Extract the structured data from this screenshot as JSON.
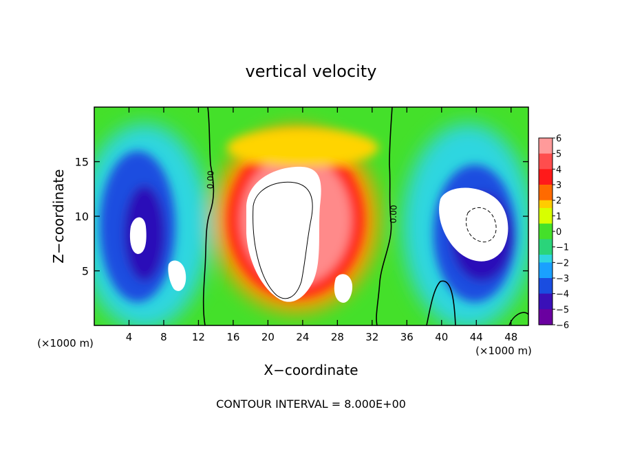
{
  "chart_data": {
    "type": "heatmap",
    "title": "vertical velocity",
    "xlabel": "X−coordinate",
    "ylabel": "Z−coordinate",
    "x_unit_label_left": "(×1000 m)",
    "x_unit_label_right": "(×1000 m)",
    "xlim": [
      0,
      50
    ],
    "ylim": [
      0,
      20
    ],
    "x_ticks": [
      4,
      8,
      12,
      16,
      20,
      24,
      28,
      32,
      36,
      40,
      44,
      48
    ],
    "y_ticks": [
      5,
      10,
      15
    ],
    "colorbar": {
      "ticks": [
        "6",
        "5",
        "4",
        "3",
        "2",
        "1",
        "0",
        "−1",
        "−2",
        "−3",
        "−4",
        "−5",
        "−6"
      ],
      "range": [
        -6,
        6
      ]
    },
    "contour_label": "0.00",
    "contour_label_left": "0.00",
    "footer": "CONTOUR INTERVAL = 8.000E+00",
    "series": [
      {
        "kind": "updraft",
        "center_x": 22.5,
        "center_z": 10.5,
        "peak": 12
      },
      {
        "kind": "updraft",
        "center_x": 44.5,
        "center_z": 9.5,
        "peak": 9
      },
      {
        "kind": "updraft",
        "center_x": 5.2,
        "center_z": 8.5,
        "peak": 7
      },
      {
        "kind": "downdraft",
        "center_x": 6.5,
        "center_z": 9,
        "peak": -6
      },
      {
        "kind": "downdraft",
        "center_x": 45,
        "center_z": 8,
        "peak": -6
      }
    ]
  }
}
